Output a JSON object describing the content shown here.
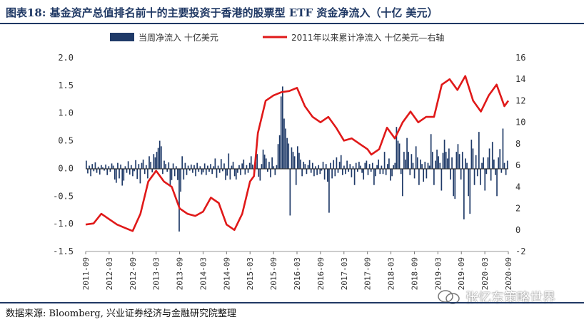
{
  "title": "图表18: 基金资产总值排名前十的主要投资于香港的股票型 ETF 资金净流入（十亿 美元）",
  "source": "数据来源: Bloomberg, 兴业证券经济与金融研究院整理",
  "watermark": "张忆东策略世界",
  "colors": {
    "bar": "#1f3a68",
    "line": "#e01919",
    "frame": "#1f3864"
  },
  "chart_data": {
    "type": "bar+line",
    "legend": [
      {
        "label": "当周净流入  十亿美元",
        "type": "bar"
      },
      {
        "label": "2011年以来累计净流入  十亿美元—右轴",
        "type": "line"
      }
    ],
    "legend_placement": "top",
    "grid": false,
    "left_axis": {
      "min": -1.5,
      "max": 2.0,
      "ticks": [
        "2.0",
        "1.5",
        "1.0",
        "0.5",
        "0.0",
        "-0.5",
        "-1.0",
        "-1.5"
      ]
    },
    "right_axis": {
      "min": -2,
      "max": 16,
      "ticks": [
        "16",
        "14",
        "12",
        "10",
        "8",
        "6",
        "4",
        "2",
        "0",
        "-2"
      ]
    },
    "x_ticks": [
      "2011-09",
      "2012-03",
      "2012-09",
      "2013-03",
      "2013-09",
      "2014-03",
      "2014-09",
      "2015-03",
      "2015-09",
      "2016-03",
      "2016-09",
      "2017-03",
      "2017-09",
      "2018-03",
      "2018-09",
      "2019-03",
      "2019-09",
      "2020-03",
      "2020-09"
    ],
    "x_range": [
      "2011-09",
      "2020-09"
    ],
    "cumulative_line": {
      "name": "2011年以来累计净流入  十亿美元—右轴",
      "x": [
        "2011-09",
        "2011-11",
        "2012-01",
        "2012-03",
        "2012-05",
        "2012-07",
        "2012-09",
        "2012-11",
        "2013-01",
        "2013-03",
        "2013-05",
        "2013-07",
        "2013-09",
        "2013-11",
        "2014-01",
        "2014-03",
        "2014-05",
        "2014-07",
        "2014-09",
        "2014-11",
        "2015-01",
        "2015-03",
        "2015-04",
        "2015-05",
        "2015-07",
        "2015-09",
        "2015-11",
        "2016-01",
        "2016-03",
        "2016-05",
        "2016-07",
        "2016-09",
        "2016-11",
        "2017-01",
        "2017-03",
        "2017-05",
        "2017-07",
        "2017-09",
        "2017-10",
        "2017-12",
        "2018-02",
        "2018-04",
        "2018-06",
        "2018-08",
        "2018-10",
        "2018-12",
        "2019-02",
        "2019-04",
        "2019-06",
        "2019-08",
        "2019-10",
        "2019-12",
        "2020-02",
        "2020-04",
        "2020-06",
        "2020-08",
        "2020-09"
      ],
      "y": [
        0.5,
        0.6,
        1.5,
        1.0,
        0.5,
        0.2,
        -0.1,
        1.5,
        4.5,
        5.5,
        4.5,
        4.0,
        2.0,
        1.5,
        1.3,
        1.7,
        3.0,
        2.5,
        0.5,
        0.0,
        1.5,
        4.5,
        5.0,
        9.0,
        12.0,
        12.5,
        12.8,
        12.9,
        13.2,
        11.5,
        10.5,
        10.0,
        10.5,
        9.5,
        8.3,
        8.5,
        8.0,
        7.5,
        7.0,
        7.5,
        9.5,
        8.5,
        10.0,
        11.0,
        10.0,
        10.5,
        10.5,
        13.5,
        14.0,
        13.0,
        14.3,
        12.0,
        11.0,
        12.5,
        13.5,
        11.5,
        12.0
      ]
    },
    "weekly_bars": {
      "name": "当周净流入  十亿美元",
      "x_start": "2011-09",
      "x_end": "2020-09",
      "values": [
        0.14,
        -0.09,
        0.05,
        -0.14,
        0.08,
        -0.05,
        0.11,
        -0.08,
        0.03,
        -0.11,
        0.06,
        0.02,
        -0.04,
        0.07,
        -0.12,
        0.04,
        -0.06,
        0.09,
        0.05,
        -0.2,
        -0.26,
        0.1,
        -0.18,
        0.07,
        -0.31,
        -0.22,
        0.04,
        -0.08,
        0.13,
        -0.11,
        0.06,
        -0.14,
        -0.05,
        0.15,
        -0.19,
        0.08,
        -0.27,
        0.1,
        0.16,
        -0.1,
        0.06,
        -0.18,
        0.22,
        0.12,
        -0.07,
        0.26,
        0.2,
        0.3,
        0.37,
        0.5,
        0.4,
        -0.1,
        0.14,
        0.08,
        -0.06,
        0.11,
        -0.31,
        -0.21,
        0.09,
        -0.14,
        0.04,
        -0.21,
        -1.14,
        -0.42,
        0.22,
        -0.2,
        0.1,
        -0.12,
        0.05,
        -0.04,
        0.07,
        -0.08,
        0.06,
        -0.14,
        0.1,
        -0.06,
        0.04,
        -0.11,
        -0.07,
        0.09,
        -0.12,
        0.05,
        -0.06,
        0.08,
        -0.1,
        0.04,
        0.18,
        -0.17,
        0.05,
        -0.08,
        0.17,
        -0.05,
        0.09,
        -0.21,
        -0.13,
        0.27,
        -0.2,
        0.05,
        0.12,
        -0.14,
        -0.2,
        -0.08,
        0.06,
        -0.12,
        0.09,
        0.16,
        -0.11,
        0.06,
        -0.08,
        0.1,
        0.22,
        0.07,
        -0.1,
        0.12,
        0.26,
        -0.15,
        -0.22,
        0.08,
        0.34,
        0.25,
        0.18,
        -0.06,
        0.12,
        -0.16,
        0.2,
        0.04,
        -0.12,
        0.06,
        0.44,
        0.6,
        1.3,
        1.48,
        0.9,
        0.72,
        0.55,
        0.45,
        -0.85,
        0.38,
        0.3,
        0.22,
        -0.3,
        0.4,
        0.28,
        0.16,
        -0.14,
        0.12,
        0.08,
        -0.1,
        0.06,
        0.15,
        -0.08,
        0.1,
        -0.14,
        0.04,
        -0.12,
        0.06,
        -0.1,
        -0.04,
        0.12,
        -0.2,
        0.08,
        -0.24,
        -0.8,
        0.1,
        -0.18,
        0.15,
        -0.14,
        0.2,
        -0.08,
        0.12,
        0.24,
        -0.12,
        0.05,
        -0.1,
        0.14,
        -0.06,
        0.08,
        -0.16,
        0.04,
        -0.3,
        0.1,
        -0.06,
        0.12,
        0.05,
        -0.08,
        -0.2,
        0.1,
        0.14,
        -0.12,
        0.08,
        -0.06,
        0.1,
        -0.3,
        -0.14,
        0.06,
        0.16,
        -0.1,
        0.05,
        -0.1,
        0.3,
        -0.12,
        0.08,
        0.18,
        -0.22,
        -0.14,
        0.06,
        0.1,
        0.75,
        0.5,
        0.45,
        -0.1,
        -0.5,
        0.3,
        0.16,
        0.55,
        0.3,
        -0.12,
        0.26,
        0.1,
        -0.18,
        0.4,
        0.2,
        -0.3,
        0.16,
        0.08,
        -0.24,
        0.12,
        -0.18,
        0.1,
        0.05,
        0.62,
        0.3,
        -0.3,
        0.14,
        0.34,
        0.22,
        0.1,
        -0.4,
        0.28,
        0.52,
        0.3,
        0.18,
        0.36,
        -0.2,
        0.2,
        -0.5,
        -0.55,
        0.3,
        0.44,
        0.26,
        -0.2,
        0.3,
        -0.92,
        0.18,
        0.1,
        -0.5,
        -0.82,
        0.52,
        0.36,
        -0.3,
        0.24,
        -0.14,
        0.66,
        -0.3,
        0.1,
        0.2,
        -0.4,
        -0.1,
        0.2,
        0.36,
        -0.22,
        0.48,
        0.16,
        -0.12,
        -0.5,
        0.2,
        0.35,
        -0.08,
        0.72,
        0.1,
        -0.12,
        0.14
      ]
    }
  }
}
